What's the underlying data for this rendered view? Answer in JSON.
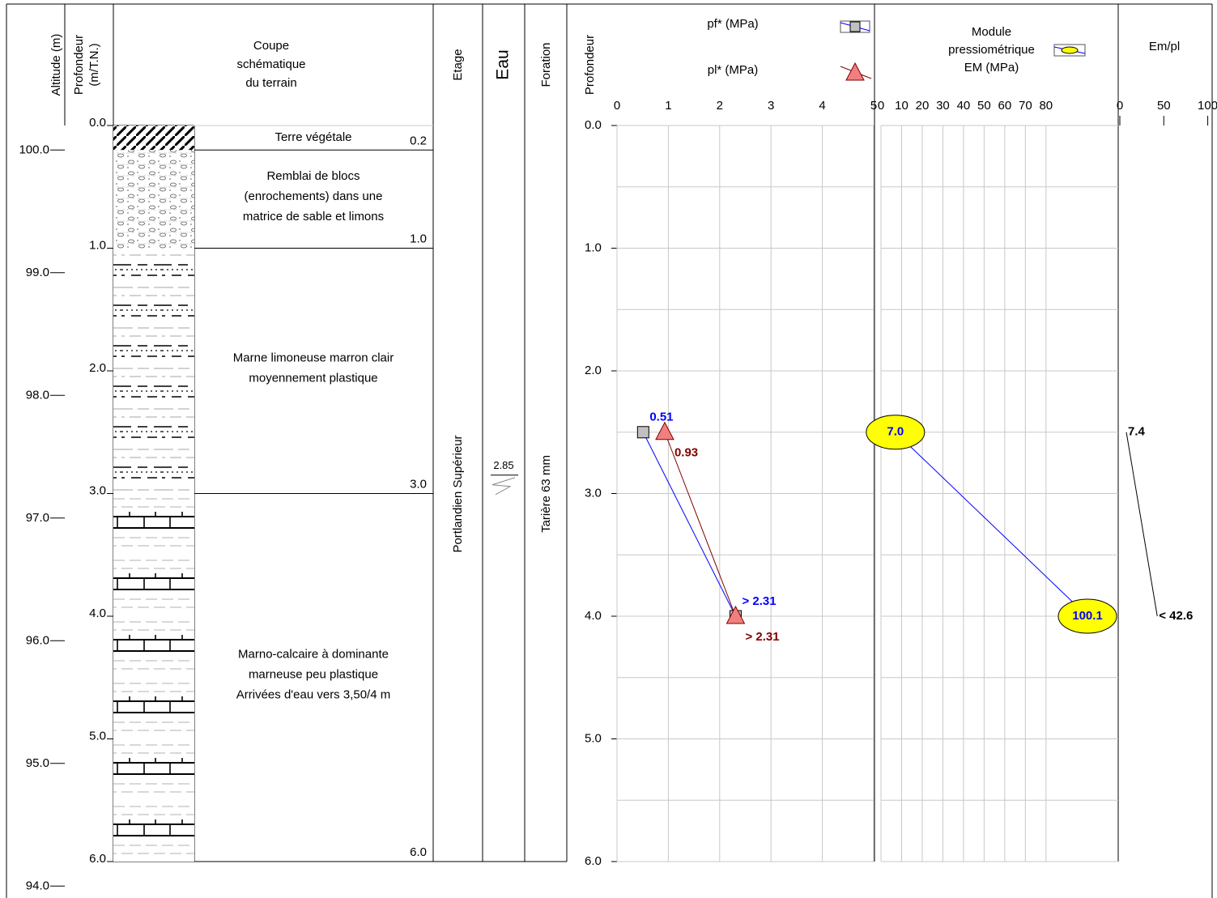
{
  "header": {
    "altitude": "Altitude (m)",
    "depth": [
      "Profondeur",
      "(m/T.N.)"
    ],
    "section": [
      "Coupe",
      "schématique",
      "du terrain"
    ],
    "stage": "Etage",
    "water": "Eau",
    "drilling": "Foration",
    "depth_right": "Profondeur"
  },
  "depth_axis": {
    "lim": [
      0,
      6
    ],
    "ticks": [
      {
        "value": 0,
        "label": "0.0"
      },
      {
        "value": 1,
        "label": "1.0"
      },
      {
        "value": 2,
        "label": "2.0"
      },
      {
        "value": 3,
        "label": "3.0"
      },
      {
        "value": 4,
        "label": "4.0"
      },
      {
        "value": 5,
        "label": "5.0"
      },
      {
        "value": 6,
        "label": "6.0"
      }
    ],
    "minor_ticks": [
      0.5,
      1.5,
      2.5,
      3.5,
      4.5,
      5.5
    ]
  },
  "altitude_axis": {
    "lim": [
      100.2,
      94.2
    ],
    "ticks": [
      {
        "value": 100,
        "label": "100.0"
      },
      {
        "value": 99,
        "label": "99.0"
      },
      {
        "value": 98,
        "label": "98.0"
      },
      {
        "value": 97,
        "label": "97.0"
      },
      {
        "value": 96,
        "label": "96.0"
      },
      {
        "value": 95,
        "label": "95.0"
      },
      {
        "value": 94,
        "label": "94.0"
      }
    ]
  },
  "layers": [
    {
      "bottom": {
        "value": 0.2,
        "label": "0.2"
      },
      "description": [
        "Terre végétale"
      ],
      "pattern": "topsoil"
    },
    {
      "bottom": {
        "value": 1,
        "label": "1.0"
      },
      "description": [
        "Remblai de blocs",
        "(enrochements) dans une",
        "matrice de sable et limons"
      ],
      "pattern": "fill"
    },
    {
      "bottom": {
        "value": 3,
        "label": "3.0"
      },
      "description": [
        "Marne limoneuse marron clair",
        "moyennement plastique"
      ],
      "pattern": "silty-marl"
    },
    {
      "bottom": {
        "value": 6,
        "label": "6.0"
      },
      "description": [
        "Marno-calcaire à dominante",
        "marneuse peu plastique",
        "Arrivées d'eau vers 3,50/4 m"
      ],
      "pattern": "marly-limestone"
    }
  ],
  "stage": "Portlandien Supérieur",
  "water": {
    "depth": 2.85
  },
  "drilling": "Tarière 63 mm",
  "chart_data": [
    {
      "type": "line",
      "orientation": "horizontal",
      "x": [
        2.5,
        4
      ],
      "ylim": [
        0,
        5
      ],
      "yticks": [
        0,
        1,
        2,
        3,
        4,
        5
      ],
      "grid": true,
      "series": [
        {
          "name": "pf* (MPa)",
          "color": "#0000ff",
          "marker": "square",
          "marker_color": "#c0c0c0",
          "label_color": "#0000ff",
          "values": [
            0.51,
            2.31
          ],
          "value_labels": [
            "0.51",
            "> 2.31"
          ]
        },
        {
          "name": "pl* (MPa)",
          "color": "#800000",
          "marker": "triangle",
          "marker_color": "#f08080",
          "label_color": "#800000",
          "values": [
            0.93,
            2.31
          ],
          "value_labels": [
            "0.93",
            "> 2.31"
          ]
        }
      ]
    },
    {
      "type": "line",
      "orientation": "horizontal",
      "title": [
        "Module",
        "pressiométrique",
        "EM (MPa)"
      ],
      "x": [
        2.5,
        4
      ],
      "ylim": [
        0,
        115
      ],
      "yticks": [
        0,
        10,
        20,
        30,
        40,
        50,
        60,
        70,
        80
      ],
      "grid": true,
      "series": [
        {
          "color": "#0000ff",
          "marker": "ellipse",
          "marker_color": "#ffff00",
          "label_color": "#0000ff",
          "values": [
            7.0,
            100.1
          ],
          "value_labels": [
            "7.0",
            "100.1"
          ]
        }
      ]
    },
    {
      "type": "line",
      "orientation": "horizontal",
      "title": "Em/pl",
      "x": [
        2.5,
        4
      ],
      "ylim": [
        0,
        105
      ],
      "yticks": [
        0,
        50,
        100
      ],
      "grid": false,
      "series": [
        {
          "color": "#000000",
          "marker": "none",
          "label_color": "#000000",
          "values": [
            7.4,
            42.6
          ],
          "value_labels": [
            "7.4",
            "< 42.6"
          ]
        }
      ]
    }
  ]
}
